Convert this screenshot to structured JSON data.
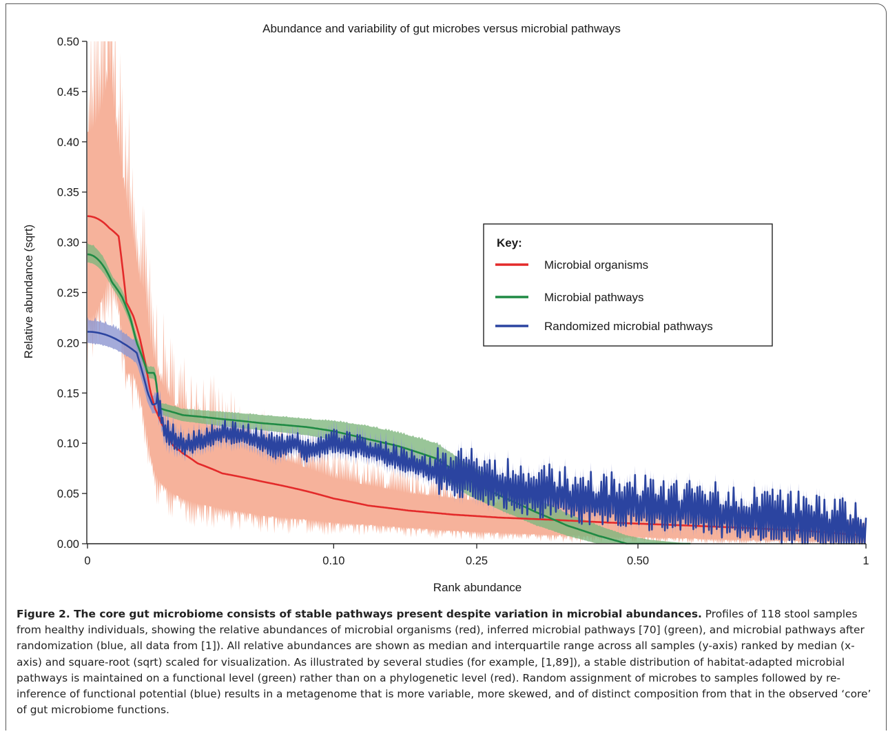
{
  "figure": {
    "caption_label": "Figure 2. The core gut microbiome consists of stable pathways present despite variation in microbial abundances.",
    "caption_text": " Profiles of 118 stool samples from healthy individuals, showing the relative abundances of microbial organisms (red), inferred microbial pathways [70] (green), and microbial pathways after randomization (blue, all data from [1]). All relative abundances are shown as median and interquartile range across all samples (y-axis) ranked by median (x-axis) and square-root (sqrt) scaled for visualization. As illustrated by several studies (for example, [1,89]), a stable distribution of habitat-adapted microbial pathways is maintained on a functional level (green) rather than on a phylogenetic level (red). Random assignment of microbes to samples followed by re-inference of functional potential (blue) results in a metagenome that is more variable, more skewed, and of distinct composition from that in the observed ‘core’ of gut microbiome functions."
  },
  "chart_data": {
    "type": "line",
    "title": "Abundance and variability of gut microbes versus microbial pathways",
    "xlabel": "Rank abundance",
    "ylabel": "Relative abundance (sqrt)",
    "x_scale": "sqrt",
    "xlim": [
      0,
      1
    ],
    "ylim": [
      0,
      0.5
    ],
    "xticks": [
      {
        "value": 0,
        "label": "0"
      },
      {
        "value": 0.1,
        "label": "0.10"
      },
      {
        "value": 0.25,
        "label": "0.25"
      },
      {
        "value": 0.5,
        "label": "0.50"
      },
      {
        "value": 1,
        "label": "1"
      }
    ],
    "yticks": [
      {
        "value": 0,
        "label": "0.00"
      },
      {
        "value": 0.05,
        "label": "0.05"
      },
      {
        "value": 0.1,
        "label": "0.10"
      },
      {
        "value": 0.15,
        "label": "0.15"
      },
      {
        "value": 0.2,
        "label": "0.20"
      },
      {
        "value": 0.25,
        "label": "0.25"
      },
      {
        "value": 0.3,
        "label": "0.30"
      },
      {
        "value": 0.35,
        "label": "0.35"
      },
      {
        "value": 0.4,
        "label": "0.40"
      },
      {
        "value": 0.45,
        "label": "0.45"
      },
      {
        "value": 0.5,
        "label": "0.50"
      }
    ],
    "legend": {
      "title": "Key:",
      "position": "right",
      "entries": [
        {
          "label": "Microbial organisms",
          "color": "#e32a2a"
        },
        {
          "label": "Microbial pathways",
          "color": "#1f8a44"
        },
        {
          "label": "Randomized microbial pathways",
          "color": "#2b44a0"
        }
      ]
    },
    "band_colors": {
      "red": "#f5a58a",
      "green": "#7fb77e",
      "blue": "#8d96d1"
    },
    "series": [
      {
        "name": "Microbial organisms",
        "color": "#e32a2a",
        "x": [
          0,
          0.0008,
          0.0016,
          0.0025,
          0.0035,
          0.0045,
          0.0055,
          0.0065,
          0.0075,
          0.009,
          0.012,
          0.015,
          0.02,
          0.03,
          0.05,
          0.08,
          0.1,
          0.13,
          0.17,
          0.22,
          0.28,
          0.35,
          0.45,
          0.55,
          0.7,
          0.85,
          1.0
        ],
        "median": [
          0.326,
          0.314,
          0.306,
          0.24,
          0.226,
          0.205,
          0.18,
          0.152,
          0.135,
          0.12,
          0.098,
          0.09,
          0.08,
          0.07,
          0.062,
          0.052,
          0.045,
          0.038,
          0.033,
          0.029,
          0.026,
          0.024,
          0.021,
          0.019,
          0.016,
          0.013,
          0.008
        ],
        "q1": [
          0.225,
          0.27,
          0.24,
          0.17,
          0.17,
          0.15,
          0.12,
          0.09,
          0.07,
          0.06,
          0.05,
          0.045,
          0.04,
          0.035,
          0.028,
          0.024,
          0.021,
          0.019,
          0.016,
          0.013,
          0.011,
          0.009,
          0.007,
          0.006,
          0.004,
          0.003,
          0.002
        ],
        "q3": [
          0.41,
          0.47,
          0.39,
          0.34,
          0.3,
          0.26,
          0.25,
          0.2,
          0.18,
          0.16,
          0.14,
          0.13,
          0.125,
          0.105,
          0.09,
          0.075,
          0.065,
          0.058,
          0.05,
          0.045,
          0.04,
          0.036,
          0.032,
          0.028,
          0.024,
          0.02,
          0.016
        ]
      },
      {
        "name": "Microbial pathways",
        "color": "#1f8a44",
        "x": [
          0,
          0.001,
          0.002,
          0.003,
          0.004,
          0.005,
          0.006,
          0.0075,
          0.0085,
          0.01,
          0.015,
          0.03,
          0.05,
          0.08,
          0.1,
          0.13,
          0.16,
          0.2,
          0.24,
          0.28,
          0.33,
          0.38,
          0.43,
          0.48,
          0.52,
          0.56,
          0.6
        ],
        "median": [
          0.288,
          0.26,
          0.245,
          0.225,
          0.2,
          0.185,
          0.17,
          0.17,
          0.135,
          0.133,
          0.128,
          0.124,
          0.12,
          0.116,
          0.112,
          0.104,
          0.097,
          0.085,
          0.063,
          0.048,
          0.032,
          0.018,
          0.008,
          0.0,
          0.0,
          0.0,
          0.0
        ],
        "q1": [
          0.28,
          0.255,
          0.238,
          0.219,
          0.194,
          0.179,
          0.165,
          0.164,
          0.13,
          0.127,
          0.122,
          0.117,
          0.113,
          0.108,
          0.103,
          0.092,
          0.084,
          0.07,
          0.048,
          0.034,
          0.019,
          0.008,
          0.0,
          0.0,
          0.0,
          0.0,
          0.0
        ],
        "q3": [
          0.298,
          0.266,
          0.252,
          0.231,
          0.206,
          0.192,
          0.176,
          0.176,
          0.14,
          0.139,
          0.134,
          0.131,
          0.128,
          0.124,
          0.122,
          0.117,
          0.11,
          0.1,
          0.078,
          0.062,
          0.045,
          0.03,
          0.018,
          0.008,
          0.004,
          0.002,
          0.0
        ]
      },
      {
        "name": "Randomized microbial pathways",
        "color": "#2b44a0",
        "x": [
          0,
          0.002,
          0.004,
          0.005,
          0.006,
          0.007,
          0.008,
          0.01,
          0.015,
          0.02,
          0.03,
          0.04,
          0.05,
          0.06,
          0.07,
          0.08,
          0.1,
          0.12,
          0.15,
          0.2,
          0.25,
          0.3,
          0.35,
          0.4,
          0.5,
          0.6,
          0.7,
          0.8,
          0.9,
          1.0
        ],
        "median": [
          0.211,
          0.2,
          0.19,
          0.17,
          0.15,
          0.138,
          0.14,
          0.11,
          0.095,
          0.1,
          0.11,
          0.105,
          0.1,
          0.092,
          0.1,
          0.09,
          0.1,
          0.095,
          0.085,
          0.07,
          0.06,
          0.05,
          0.045,
          0.04,
          0.035,
          0.03,
          0.025,
          0.02,
          0.015,
          0.005
        ],
        "q1": [
          0.2,
          0.19,
          0.18,
          0.16,
          0.14,
          0.13,
          0.13,
          0.1,
          0.088,
          0.093,
          0.102,
          0.097,
          0.092,
          0.085,
          0.092,
          0.083,
          0.092,
          0.087,
          0.077,
          0.063,
          0.053,
          0.043,
          0.038,
          0.033,
          0.028,
          0.023,
          0.018,
          0.013,
          0.009,
          0.001
        ],
        "q3": [
          0.222,
          0.21,
          0.2,
          0.18,
          0.16,
          0.146,
          0.15,
          0.12,
          0.102,
          0.107,
          0.118,
          0.113,
          0.108,
          0.099,
          0.108,
          0.097,
          0.108,
          0.103,
          0.093,
          0.077,
          0.067,
          0.057,
          0.052,
          0.047,
          0.042,
          0.037,
          0.032,
          0.027,
          0.021,
          0.009
        ]
      }
    ]
  }
}
